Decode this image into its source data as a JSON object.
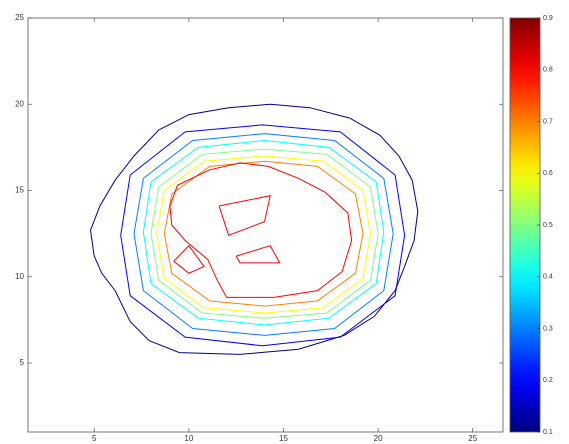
{
  "chart_data": {
    "type": "contour",
    "xlim": [
      1.5,
      26.6
    ],
    "ylim": [
      1,
      25
    ],
    "xticks": [
      5,
      10,
      15,
      20,
      25
    ],
    "yticks": [
      5,
      10,
      15,
      20,
      25
    ],
    "colormap": "jet",
    "clim": [
      0.1,
      0.9
    ],
    "colorbar_ticks": [
      0.1,
      0.2,
      0.3,
      0.4,
      0.5,
      0.6,
      0.7,
      0.8,
      0.9
    ],
    "contours": [
      {
        "level": 0.1,
        "x": [
          5.0,
          4.8,
          5.3,
          6.1,
          7.1,
          8.4,
          10.0,
          12.1,
          14.3,
          16.4,
          18.5,
          20.1,
          21.1,
          21.8,
          22.1,
          21.9,
          21.4,
          20.9,
          19.8,
          18.2,
          15.8,
          12.7,
          9.5,
          7.9,
          6.9,
          6.1,
          5.4,
          5.0
        ],
        "y": [
          11.2,
          12.7,
          14.1,
          15.6,
          17.0,
          18.5,
          19.4,
          19.8,
          20.0,
          19.8,
          19.2,
          18.2,
          17.0,
          15.6,
          13.8,
          12.1,
          10.6,
          9.2,
          7.7,
          6.6,
          5.8,
          5.5,
          5.6,
          6.3,
          7.4,
          9.2,
          10.2,
          11.2
        ]
      },
      {
        "level": 0.2,
        "x": [
          21.4,
          20.9,
          18.0,
          13.9,
          9.8,
          6.9,
          6.4,
          6.9,
          9.8,
          13.9,
          18.0,
          20.9,
          21.4
        ],
        "y": [
          12.4,
          15.9,
          18.4,
          18.8,
          18.4,
          15.9,
          12.4,
          8.9,
          6.5,
          6.0,
          6.5,
          8.9,
          12.4
        ]
      },
      {
        "level": 0.3,
        "x": [
          20.8,
          20.3,
          17.7,
          14.0,
          10.2,
          7.6,
          7.1,
          7.6,
          10.2,
          14.0,
          17.7,
          20.3,
          20.8
        ],
        "y": [
          12.5,
          15.7,
          17.9,
          18.3,
          17.9,
          15.7,
          12.5,
          9.2,
          7.0,
          6.6,
          7.0,
          9.2,
          12.5
        ]
      },
      {
        "level": 0.4,
        "x": [
          20.3,
          19.9,
          17.4,
          14.0,
          10.5,
          8.0,
          7.6,
          8.0,
          10.5,
          14.0,
          17.4,
          19.9,
          20.3
        ],
        "y": [
          12.6,
          15.5,
          17.5,
          17.9,
          17.5,
          15.5,
          12.6,
          9.6,
          7.6,
          7.2,
          7.6,
          9.6,
          12.6
        ]
      },
      {
        "level": 0.5,
        "x": [
          20.0,
          19.6,
          17.3,
          14.0,
          10.7,
          8.4,
          8.0,
          8.4,
          10.7,
          14.0,
          17.3,
          19.6,
          20.0
        ],
        "y": [
          12.5,
          15.2,
          17.1,
          17.4,
          17.1,
          15.2,
          12.5,
          9.8,
          7.9,
          7.6,
          7.9,
          9.8,
          12.5
        ]
      },
      {
        "level": 0.6,
        "x": [
          19.6,
          19.2,
          17.1,
          14.0,
          10.8,
          8.7,
          8.3,
          8.7,
          10.8,
          14.0,
          17.1,
          19.2,
          19.6
        ],
        "y": [
          12.5,
          15.0,
          16.7,
          17.0,
          16.7,
          15.0,
          12.5,
          9.9,
          8.2,
          7.9,
          8.2,
          9.9,
          12.5
        ]
      },
      {
        "level": 0.7,
        "x": [
          19.2,
          18.8,
          16.8,
          14.0,
          11.1,
          9.1,
          8.7,
          9.1,
          11.1,
          14.0,
          16.8,
          18.8,
          19.2
        ],
        "y": [
          12.5,
          14.8,
          16.4,
          16.7,
          16.4,
          14.8,
          12.5,
          10.2,
          8.6,
          8.3,
          8.6,
          10.2,
          12.5
        ]
      },
      {
        "level": 0.8,
        "x": [
          9.0,
          9.4,
          11.1,
          12.7,
          14.2,
          15.8,
          17.2,
          18.4,
          18.6,
          18.1,
          16.8,
          14.5,
          12.0,
          11.5,
          11.0,
          9.8,
          9.1,
          9.0
        ],
        "y": [
          14.1,
          15.3,
          16.2,
          16.6,
          16.4,
          15.7,
          14.9,
          13.7,
          12.1,
          10.3,
          9.2,
          8.8,
          8.8,
          9.8,
          11.0,
          12.1,
          13.0,
          14.1
        ]
      },
      {
        "level": 0.8,
        "x": [
          11.6,
          14.3,
          14.0,
          12.1,
          11.6
        ],
        "y": [
          14.1,
          14.7,
          13.2,
          12.4,
          14.1
        ]
      },
      {
        "level": 0.8,
        "x": [
          12.5,
          14.3,
          14.8,
          12.7,
          12.5
        ],
        "y": [
          11.2,
          11.8,
          10.8,
          10.8,
          11.2
        ]
      },
      {
        "level": 0.8,
        "x": [
          9.2,
          10.0,
          10.8,
          10.0,
          9.2
        ],
        "y": [
          10.9,
          11.8,
          10.6,
          10.2,
          10.9
        ]
      }
    ]
  }
}
